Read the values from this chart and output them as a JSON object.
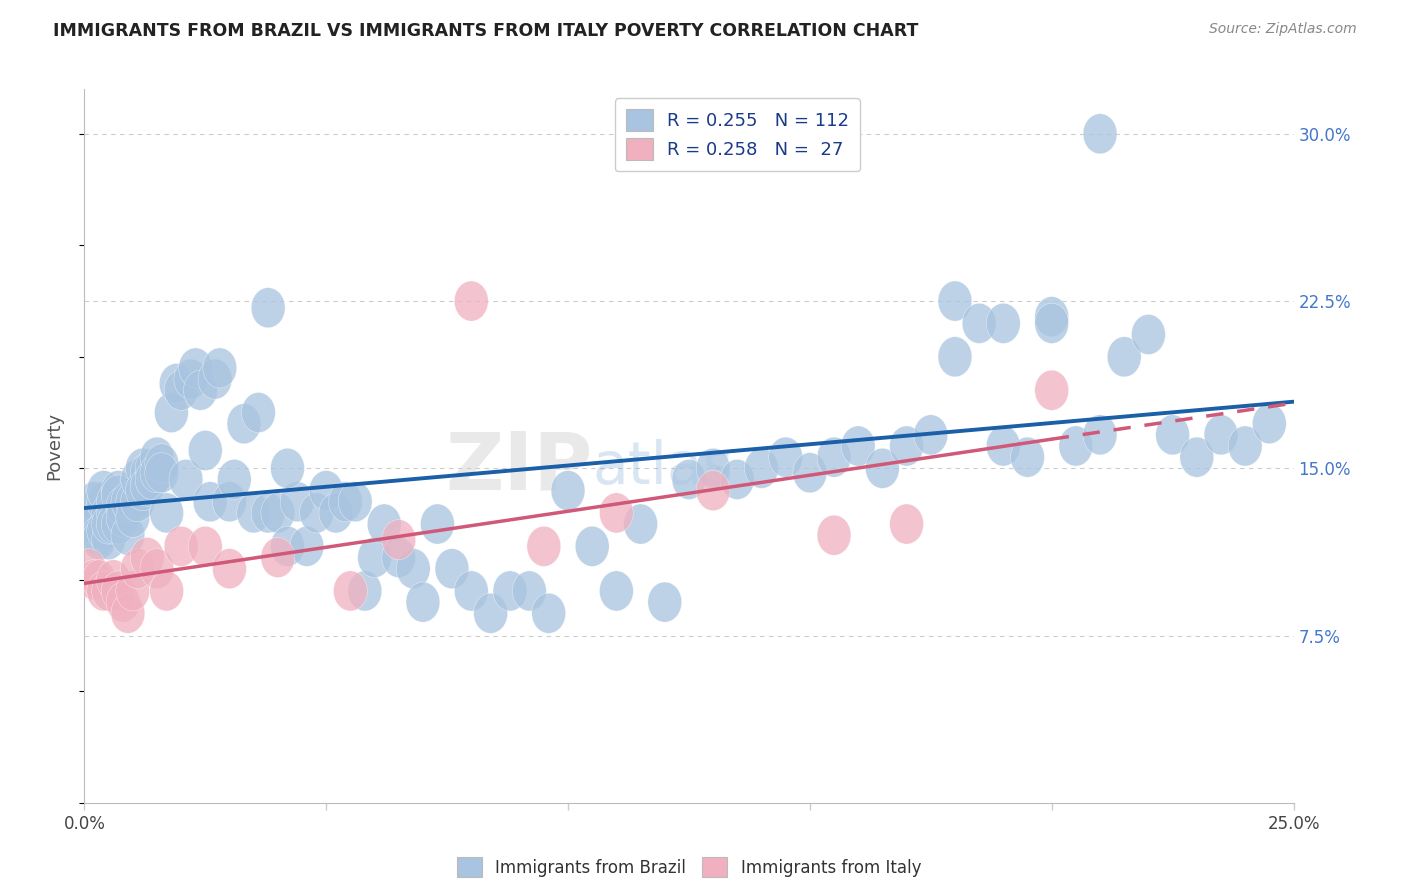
{
  "title": "IMMIGRANTS FROM BRAZIL VS IMMIGRANTS FROM ITALY POVERTY CORRELATION CHART",
  "source": "Source: ZipAtlas.com",
  "ylabel": "Poverty",
  "xlim": [
    0.0,
    0.25
  ],
  "ylim": [
    0.0,
    0.32
  ],
  "brazil_R": 0.255,
  "brazil_N": 112,
  "italy_R": 0.258,
  "italy_N": 27,
  "brazil_color": "#a8c4e0",
  "italy_color": "#f0b0c0",
  "brazil_line_color": "#1a5fa8",
  "italy_line_color": "#d05878",
  "watermark": "ZIPatlas",
  "background_color": "#ffffff",
  "grid_color": "#cccccc",
  "brazil_x": [
    0.001,
    0.002,
    0.002,
    0.003,
    0.003,
    0.003,
    0.004,
    0.004,
    0.004,
    0.005,
    0.005,
    0.005,
    0.006,
    0.006,
    0.006,
    0.007,
    0.007,
    0.007,
    0.008,
    0.008,
    0.009,
    0.009,
    0.01,
    0.01,
    0.011,
    0.011,
    0.012,
    0.012,
    0.013,
    0.013,
    0.014,
    0.014,
    0.015,
    0.015,
    0.016,
    0.016,
    0.017,
    0.018,
    0.019,
    0.02,
    0.021,
    0.022,
    0.023,
    0.024,
    0.025,
    0.026,
    0.027,
    0.028,
    0.03,
    0.031,
    0.033,
    0.035,
    0.036,
    0.038,
    0.04,
    0.042,
    0.044,
    0.046,
    0.048,
    0.05,
    0.052,
    0.054,
    0.056,
    0.058,
    0.06,
    0.062,
    0.065,
    0.068,
    0.07,
    0.073,
    0.076,
    0.08,
    0.084,
    0.088,
    0.092,
    0.096,
    0.1,
    0.105,
    0.11,
    0.115,
    0.12,
    0.125,
    0.13,
    0.135,
    0.14,
    0.145,
    0.15,
    0.155,
    0.16,
    0.165,
    0.17,
    0.175,
    0.18,
    0.185,
    0.19,
    0.195,
    0.2,
    0.205,
    0.21,
    0.215,
    0.22,
    0.225,
    0.23,
    0.235,
    0.24,
    0.245,
    0.21,
    0.18,
    0.038,
    0.042,
    0.19,
    0.2
  ],
  "brazil_y": [
    0.13,
    0.125,
    0.135,
    0.128,
    0.12,
    0.118,
    0.135,
    0.14,
    0.122,
    0.13,
    0.118,
    0.125,
    0.13,
    0.135,
    0.125,
    0.14,
    0.138,
    0.125,
    0.133,
    0.128,
    0.135,
    0.12,
    0.135,
    0.128,
    0.135,
    0.145,
    0.15,
    0.14,
    0.148,
    0.142,
    0.15,
    0.145,
    0.155,
    0.148,
    0.152,
    0.148,
    0.13,
    0.175,
    0.188,
    0.185,
    0.145,
    0.19,
    0.195,
    0.185,
    0.158,
    0.135,
    0.19,
    0.195,
    0.135,
    0.145,
    0.17,
    0.13,
    0.175,
    0.13,
    0.13,
    0.115,
    0.135,
    0.115,
    0.13,
    0.14,
    0.13,
    0.135,
    0.135,
    0.095,
    0.11,
    0.125,
    0.11,
    0.105,
    0.09,
    0.125,
    0.105,
    0.095,
    0.085,
    0.095,
    0.095,
    0.085,
    0.14,
    0.115,
    0.095,
    0.125,
    0.09,
    0.145,
    0.15,
    0.145,
    0.15,
    0.155,
    0.148,
    0.155,
    0.16,
    0.15,
    0.16,
    0.165,
    0.225,
    0.215,
    0.16,
    0.155,
    0.218,
    0.16,
    0.165,
    0.2,
    0.21,
    0.165,
    0.155,
    0.165,
    0.16,
    0.17,
    0.3,
    0.2,
    0.222,
    0.15,
    0.215,
    0.215
  ],
  "italy_x": [
    0.001,
    0.002,
    0.003,
    0.004,
    0.005,
    0.006,
    0.007,
    0.008,
    0.009,
    0.01,
    0.011,
    0.013,
    0.015,
    0.017,
    0.02,
    0.025,
    0.03,
    0.04,
    0.055,
    0.065,
    0.08,
    0.095,
    0.11,
    0.13,
    0.155,
    0.17,
    0.2
  ],
  "italy_y": [
    0.105,
    0.1,
    0.1,
    0.095,
    0.095,
    0.1,
    0.095,
    0.09,
    0.085,
    0.095,
    0.105,
    0.11,
    0.105,
    0.095,
    0.115,
    0.115,
    0.105,
    0.11,
    0.095,
    0.118,
    0.225,
    0.115,
    0.13,
    0.14,
    0.12,
    0.125,
    0.185
  ]
}
